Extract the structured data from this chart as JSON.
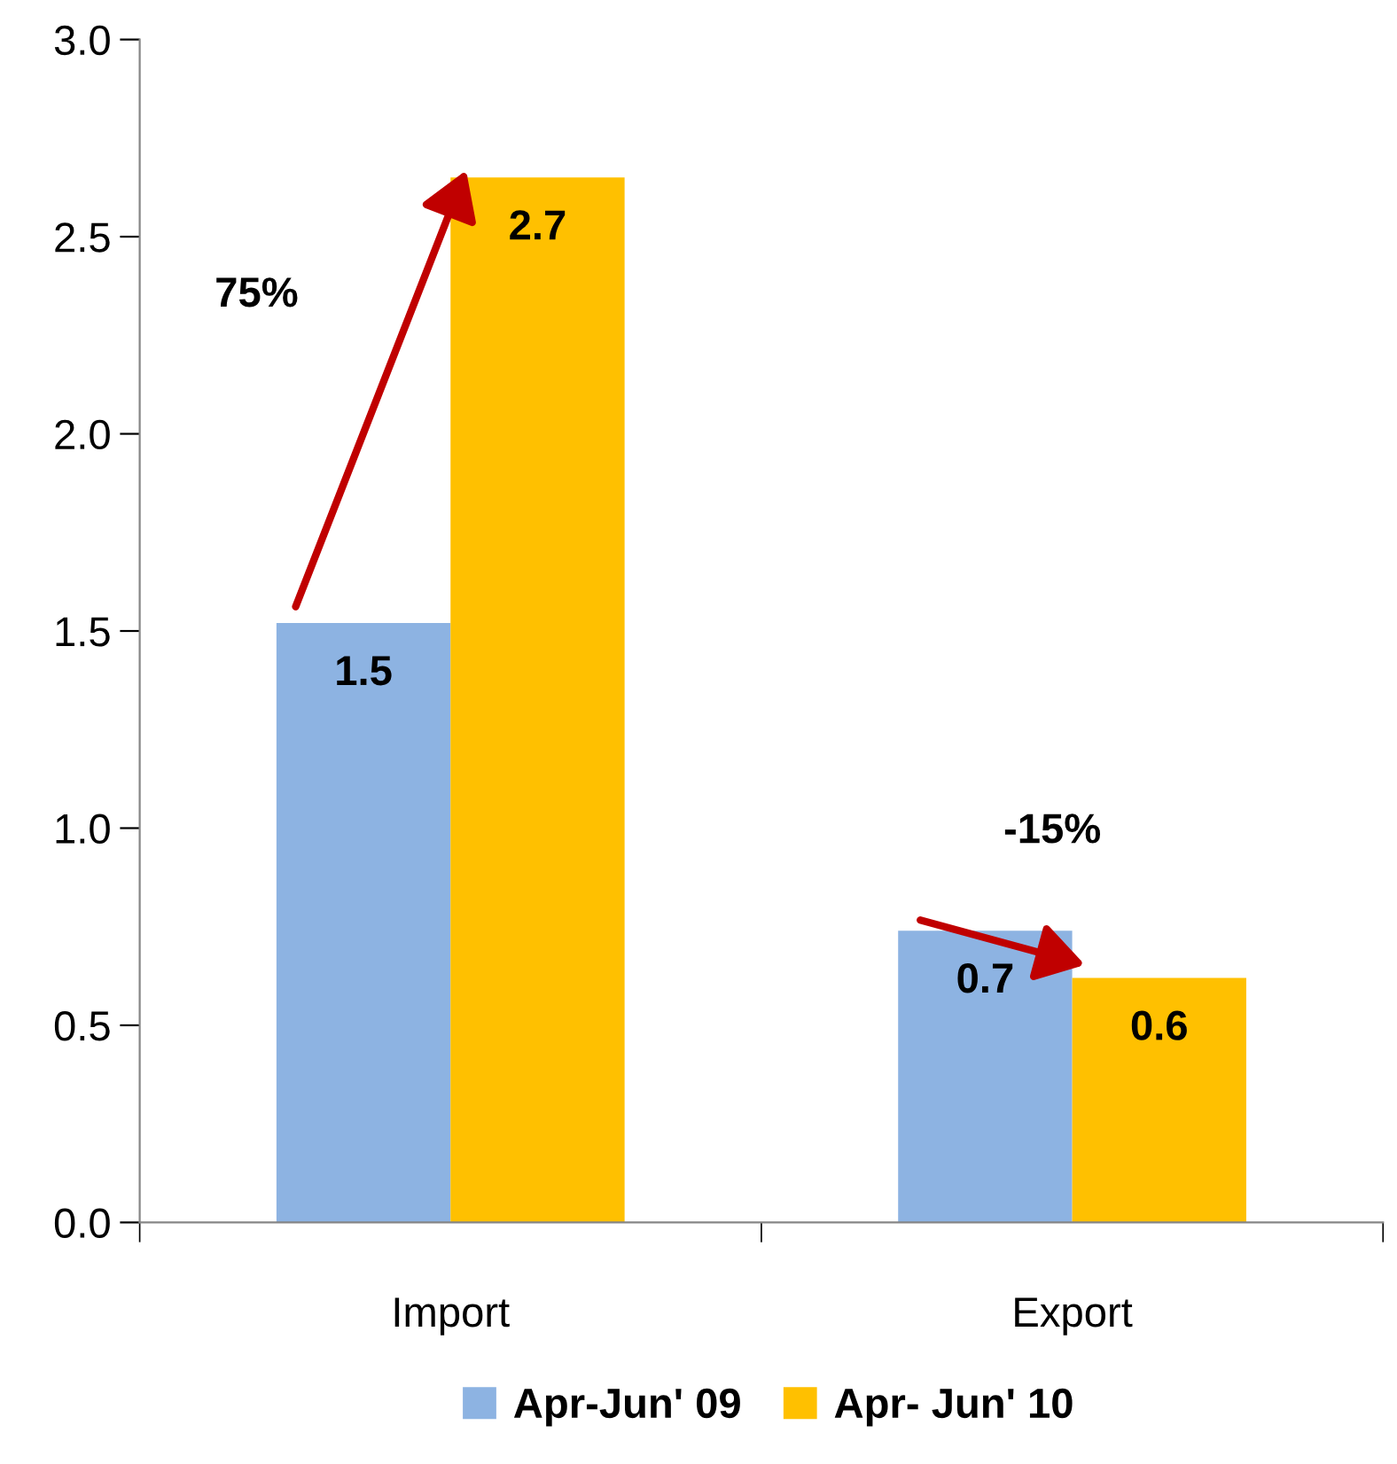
{
  "chart_data": {
    "type": "bar",
    "categories": [
      "Import",
      "Export"
    ],
    "series": [
      {
        "name": "Apr-Jun' 09",
        "color": "#8db3e2",
        "values": [
          1.52,
          0.74
        ],
        "value_labels": [
          "1.5",
          "0.7"
        ]
      },
      {
        "name": "Apr- Jun' 10",
        "color": "#ffc000",
        "values": [
          2.65,
          0.62
        ],
        "value_labels": [
          "2.7",
          "0.6"
        ]
      }
    ],
    "ylim": [
      0,
      3
    ],
    "yticks": [
      {
        "value": 0,
        "label": "0.0"
      },
      {
        "value": 0.5,
        "label": "0.5"
      },
      {
        "value": 1,
        "label": "1.0"
      },
      {
        "value": 1.5,
        "label": "1.5"
      },
      {
        "value": 2,
        "label": "2.0"
      },
      {
        "value": 2.5,
        "label": "2.5"
      },
      {
        "value": 3,
        "label": "3.0"
      }
    ],
    "annotations": [
      "75%",
      "-15%"
    ],
    "grid": false,
    "legend": "bottom"
  }
}
